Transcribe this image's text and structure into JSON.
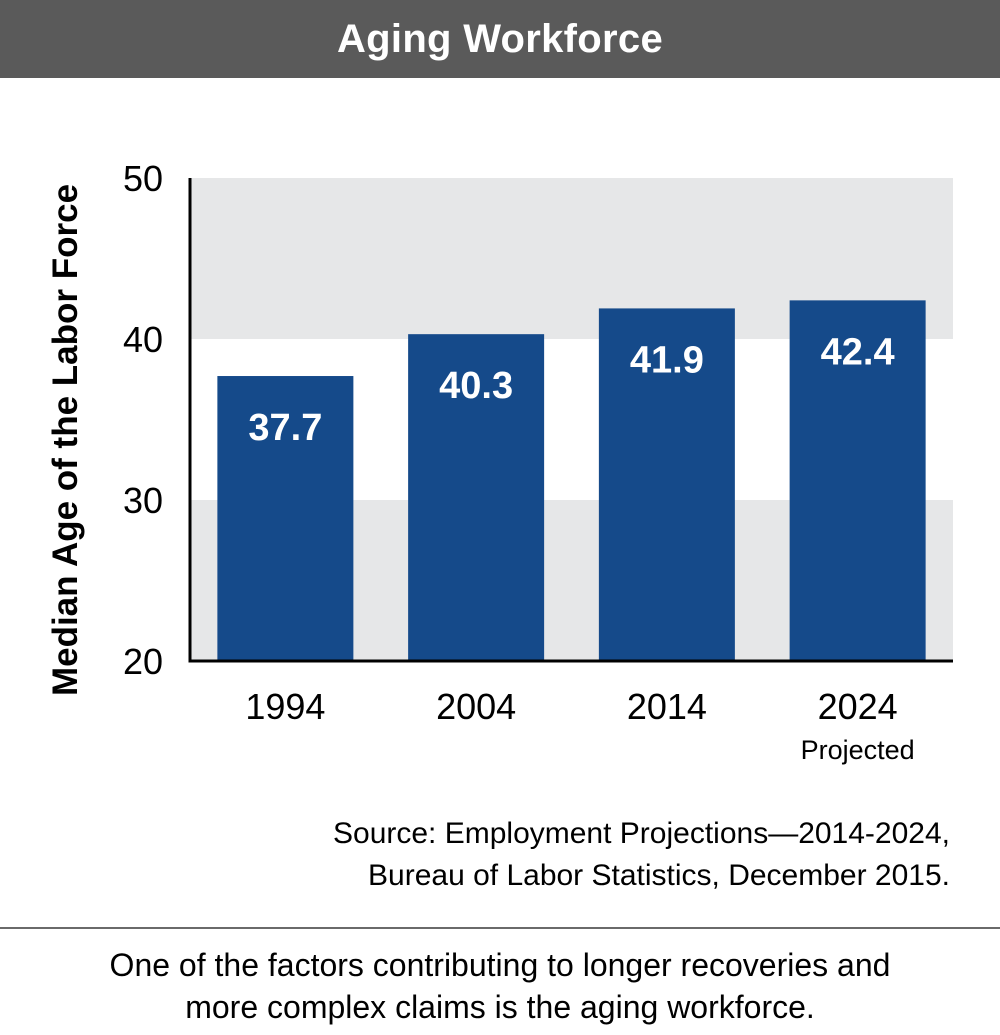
{
  "chart_data": {
    "type": "bar",
    "title": "Aging Workforce",
    "ylabel": "Median Age of the Labor Force",
    "xlabel": "",
    "categories": [
      "1994",
      "2004",
      "2014",
      "2024"
    ],
    "category_sublabels": [
      "",
      "",
      "",
      "Projected"
    ],
    "values": [
      37.7,
      40.3,
      41.9,
      42.4
    ],
    "value_labels": [
      "37.7",
      "40.3",
      "41.9",
      "42.4"
    ],
    "ylim": [
      20,
      50
    ],
    "yticks": [
      20,
      30,
      40,
      50
    ],
    "ytick_labels": [
      "20",
      "30",
      "40",
      "50"
    ],
    "grid": "alternating horizontal bands",
    "legend": "none"
  },
  "colors": {
    "title_bar": "#5a5a5a",
    "bar": "#154a8a",
    "band": "#e6e7e8",
    "axis": "#000000",
    "value_label": "#ffffff"
  },
  "source": {
    "line1": "Source: Employment Projections—2014-2024,",
    "line2": "Bureau of Labor Statistics, December 2015."
  },
  "caption": {
    "line1": "One of the factors contributing to longer recoveries and",
    "line2": "more complex claims is the aging workforce."
  }
}
